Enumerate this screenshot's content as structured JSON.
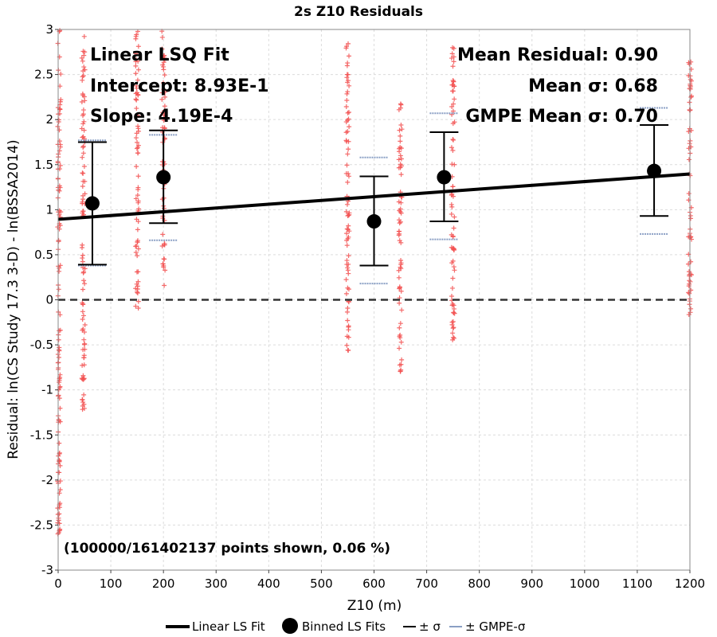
{
  "chart_data": {
    "type": "scatter",
    "title": "2s Z10 Residuals",
    "xlabel": "Z10 (m)",
    "ylabel": "Residual: ln(CS Study 17.3 3-D) - ln(BSSA2014)",
    "xlim": [
      0,
      1200
    ],
    "ylim": [
      -3,
      3
    ],
    "xticks": [
      0,
      100,
      200,
      300,
      400,
      500,
      600,
      700,
      800,
      900,
      1000,
      1100,
      1200
    ],
    "yticks": [
      3,
      2.5,
      2,
      1.5,
      1,
      0.5,
      0,
      -0.5,
      -1,
      -1.5,
      -2,
      -2.5,
      -3
    ],
    "grid": true,
    "zero_line": 0,
    "colors": {
      "scatter": "#f25050",
      "fit_line": "#000000",
      "binned": "#000000",
      "sigma": "#000000",
      "gmpe_sigma": "#8a9fc4"
    },
    "annotations": {
      "fit_title": "Linear LSQ Fit",
      "intercept": "Intercept: 8.93E-1",
      "slope": "Slope: 4.19E-4",
      "mean_residual": "Mean Residual: 0.90",
      "mean_sigma": "Mean σ: 0.68",
      "gmpe_mean_sigma": "GMPE Mean σ: 0.70",
      "points_note": "(100000/161402137 points shown, 0.06 %)"
    },
    "linear_fit": {
      "intercept": 0.893,
      "slope": 0.000419
    },
    "binned_fits": [
      {
        "x": 65,
        "mean": 1.07,
        "lower": 0.39,
        "upper": 1.75,
        "gmpe_lower": 0.38,
        "gmpe_upper": 1.77
      },
      {
        "x": 200,
        "mean": 1.36,
        "lower": 0.85,
        "upper": 1.88,
        "gmpe_lower": 0.66,
        "gmpe_upper": 1.83
      },
      {
        "x": 600,
        "mean": 0.87,
        "lower": 0.38,
        "upper": 1.37,
        "gmpe_lower": 0.18,
        "gmpe_upper": 1.58
      },
      {
        "x": 733,
        "mean": 1.36,
        "lower": 0.87,
        "upper": 1.86,
        "gmpe_lower": 0.67,
        "gmpe_upper": 2.07
      },
      {
        "x": 1132,
        "mean": 1.43,
        "lower": 0.93,
        "upper": 1.94,
        "gmpe_lower": 0.73,
        "gmpe_upper": 2.13
      }
    ],
    "scatter_columns": [
      {
        "x": 2,
        "ymin": -2.6,
        "ymax": 3.0
      },
      {
        "x": 48,
        "ymin": -1.3,
        "ymax": 3.0
      },
      {
        "x": 150,
        "ymin": -0.1,
        "ymax": 3.0
      },
      {
        "x": 200,
        "ymin": 0.15,
        "ymax": 3.0
      },
      {
        "x": 550,
        "ymin": -0.6,
        "ymax": 2.9
      },
      {
        "x": 650,
        "ymin": -0.8,
        "ymax": 2.2
      },
      {
        "x": 750,
        "ymin": -0.5,
        "ymax": 2.8
      },
      {
        "x": 1200,
        "ymin": -0.2,
        "ymax": 2.7
      }
    ],
    "legend": {
      "placement": "bottom",
      "items": [
        {
          "label": "Linear LS Fit",
          "kind": "line"
        },
        {
          "label": "Binned LS Fits",
          "kind": "dot"
        },
        {
          "label": "± σ",
          "kind": "sigma"
        },
        {
          "label": "± GMPE-σ",
          "kind": "gmpe"
        }
      ]
    }
  }
}
